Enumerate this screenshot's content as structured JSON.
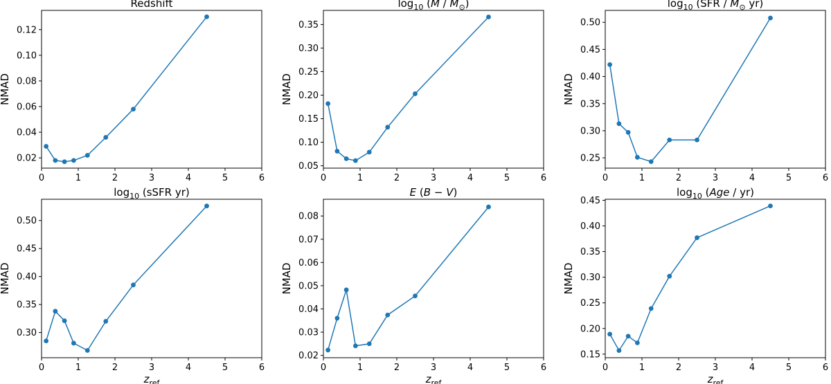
{
  "figure": {
    "background": "#ffffff",
    "series_color": "#1f77b4"
  },
  "chart_data": [
    {
      "type": "line",
      "title_parts": [
        {
          "t": "Redshift"
        }
      ],
      "ylabel": "NMAD",
      "xlabel": "",
      "xlim": [
        0,
        6
      ],
      "ylim": [
        0.012,
        0.135
      ],
      "xticks": [
        "0",
        "1",
        "2",
        "3",
        "4",
        "5",
        "6"
      ],
      "yticks": [
        0.02,
        0.04,
        0.06,
        0.08,
        0.1,
        0.12
      ],
      "yticklabels": [
        "0.02",
        "0.04",
        "0.06",
        "0.08",
        "0.10",
        "0.12"
      ],
      "x": [
        0.125,
        0.375,
        0.625,
        0.875,
        1.25,
        1.75,
        2.5,
        4.5
      ],
      "values": [
        0.029,
        0.018,
        0.017,
        0.018,
        0.022,
        0.036,
        0.058,
        0.13
      ]
    },
    {
      "type": "line",
      "title_parts": [
        {
          "t": "log"
        },
        {
          "t": "10",
          "sub": true
        },
        {
          "t": " ("
        },
        {
          "t": "M",
          "it": true
        },
        {
          "t": " / "
        },
        {
          "t": "M",
          "it": true
        },
        {
          "t": "⊙",
          "sub": true
        },
        {
          "t": ")"
        }
      ],
      "ylabel": "NMAD",
      "xlabel": "",
      "xlim": [
        0,
        6
      ],
      "ylim": [
        0.045,
        0.38
      ],
      "xticks": [
        "0",
        "1",
        "2",
        "3",
        "4",
        "5",
        "6"
      ],
      "yticks": [
        0.05,
        0.1,
        0.15,
        0.2,
        0.25,
        0.3,
        0.35
      ],
      "yticklabels": [
        "0.05",
        "0.10",
        "0.15",
        "0.20",
        "0.25",
        "0.30",
        "0.35"
      ],
      "x": [
        0.125,
        0.375,
        0.625,
        0.875,
        1.25,
        1.75,
        2.5,
        4.5
      ],
      "values": [
        0.182,
        0.081,
        0.065,
        0.061,
        0.079,
        0.132,
        0.203,
        0.366
      ]
    },
    {
      "type": "line",
      "title_parts": [
        {
          "t": "log"
        },
        {
          "t": "10",
          "sub": true
        },
        {
          "t": " (SFR / "
        },
        {
          "t": "M",
          "it": true
        },
        {
          "t": "⊙",
          "sub": true
        },
        {
          "t": " yr)"
        }
      ],
      "ylabel": "NMAD",
      "xlabel": "",
      "xlim": [
        0,
        6
      ],
      "ylim": [
        0.231,
        0.522
      ],
      "xticks": [
        "0",
        "1",
        "2",
        "3",
        "4",
        "5",
        "6"
      ],
      "yticks": [
        0.25,
        0.3,
        0.35,
        0.4,
        0.45,
        0.5
      ],
      "yticklabels": [
        "0.25",
        "0.30",
        "0.35",
        "0.40",
        "0.45",
        "0.50"
      ],
      "x": [
        0.125,
        0.375,
        0.625,
        0.875,
        1.25,
        1.75,
        2.5,
        4.5
      ],
      "values": [
        0.422,
        0.313,
        0.297,
        0.251,
        0.243,
        0.283,
        0.283,
        0.508
      ]
    },
    {
      "type": "line",
      "title_parts": [
        {
          "t": "log"
        },
        {
          "t": "10",
          "sub": true
        },
        {
          "t": " (sSFR yr)"
        }
      ],
      "ylabel": "NMAD",
      "xlabel": "z_ref",
      "xlim": [
        0,
        6
      ],
      "ylim": [
        0.255,
        0.538
      ],
      "xticks": [
        "0",
        "1",
        "2",
        "3",
        "4",
        "5",
        "6"
      ],
      "yticks": [
        0.3,
        0.35,
        0.4,
        0.45,
        0.5
      ],
      "yticklabels": [
        "0.30",
        "0.35",
        "0.40",
        "0.45",
        "0.50"
      ],
      "x": [
        0.125,
        0.375,
        0.625,
        0.875,
        1.25,
        1.75,
        2.5,
        4.5
      ],
      "values": [
        0.285,
        0.338,
        0.321,
        0.281,
        0.268,
        0.32,
        0.385,
        0.526
      ]
    },
    {
      "type": "line",
      "title_parts": [
        {
          "t": "E",
          "it": true
        },
        {
          "t": " ("
        },
        {
          "t": "B",
          "it": true
        },
        {
          "t": " − "
        },
        {
          "t": "V",
          "it": true
        },
        {
          "t": ")"
        }
      ],
      "ylabel": "NMAD",
      "xlabel": "z_ref",
      "xlim": [
        0,
        6
      ],
      "ylim": [
        0.019,
        0.0872
      ],
      "xticks": [
        "0",
        "1",
        "2",
        "3",
        "4",
        "5",
        "6"
      ],
      "yticks": [
        0.02,
        0.03,
        0.04,
        0.05,
        0.06,
        0.07,
        0.08
      ],
      "yticklabels": [
        "0.02",
        "0.03",
        "0.04",
        "0.05",
        "0.06",
        "0.07",
        "0.08"
      ],
      "x": [
        0.125,
        0.375,
        0.625,
        0.875,
        1.25,
        1.75,
        2.5,
        4.5
      ],
      "values": [
        0.0223,
        0.036,
        0.0482,
        0.0241,
        0.025,
        0.0374,
        0.0456,
        0.0839
      ]
    },
    {
      "type": "line",
      "title_parts": [
        {
          "t": "log"
        },
        {
          "t": "10",
          "sub": true
        },
        {
          "t": " ("
        },
        {
          "t": "Age",
          "it": true
        },
        {
          "t": " / yr)"
        }
      ],
      "ylabel": "NMAD",
      "xlabel": "z_ref",
      "xlim": [
        0,
        6
      ],
      "ylim": [
        0.143,
        0.452
      ],
      "xticks": [
        "0",
        "1",
        "2",
        "3",
        "4",
        "5",
        "6"
      ],
      "yticks": [
        0.15,
        0.2,
        0.25,
        0.3,
        0.35,
        0.4,
        0.45
      ],
      "yticklabels": [
        "0.15",
        "0.20",
        "0.25",
        "0.30",
        "0.35",
        "0.40",
        "0.45"
      ],
      "x": [
        0.125,
        0.375,
        0.625,
        0.875,
        1.25,
        1.75,
        2.5,
        4.5
      ],
      "values": [
        0.189,
        0.157,
        0.185,
        0.172,
        0.239,
        0.302,
        0.377,
        0.439
      ]
    }
  ]
}
